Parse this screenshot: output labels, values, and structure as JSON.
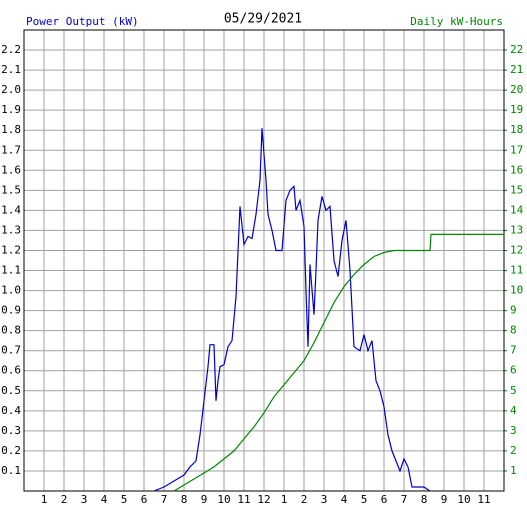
{
  "chart_data": {
    "type": "line",
    "title": "05/29/2021",
    "y_label": "Power Output (kW)",
    "y2_label": "Daily kW-Hours",
    "xlim": [
      0,
      24
    ],
    "xticks": [
      1,
      2,
      3,
      4,
      5,
      6,
      7,
      8,
      9,
      10,
      11,
      12,
      {
        "value": 13,
        "label": "1"
      },
      {
        "value": 14,
        "label": "2"
      },
      {
        "value": 15,
        "label": "3"
      },
      {
        "value": 16,
        "label": "4"
      },
      {
        "value": 17,
        "label": "5"
      },
      {
        "value": 18,
        "label": "6"
      },
      {
        "value": 19,
        "label": "7"
      },
      {
        "value": 20,
        "label": "8"
      },
      {
        "value": 21,
        "label": "9"
      },
      {
        "value": 22,
        "label": "10"
      },
      {
        "value": 23,
        "label": "11"
      }
    ],
    "ylim": [
      0,
      2.3
    ],
    "yticks": [
      0.1,
      0.2,
      0.3,
      0.4,
      0.5,
      0.6,
      0.7,
      0.8,
      0.9,
      {
        "value": 1,
        "label": "1.0"
      },
      1.1,
      1.2,
      1.3,
      1.4,
      1.5,
      1.6,
      1.7,
      1.8,
      1.9,
      {
        "value": 2,
        "label": "2.0"
      },
      2.1,
      2.2
    ],
    "y2lim": [
      0,
      23
    ],
    "y2ticks": [
      1,
      2,
      3,
      4,
      5,
      6,
      7,
      8,
      9,
      10,
      11,
      12,
      13,
      14,
      15,
      16,
      17,
      18,
      19,
      20,
      21,
      22
    ],
    "grid": true,
    "series": [
      {
        "name": "Power Output (kW)",
        "color": "#0000cc",
        "axis": "y",
        "x": [
          6.5,
          7.0,
          7.5,
          8.0,
          8.3,
          8.6,
          8.8,
          9.0,
          9.2,
          9.3,
          9.5,
          9.6,
          9.7,
          9.8,
          10.0,
          10.2,
          10.4,
          10.6,
          10.8,
          11.0,
          11.2,
          11.4,
          11.6,
          11.8,
          11.9,
          12.1,
          12.2,
          12.4,
          12.6,
          12.9,
          13.1,
          13.3,
          13.5,
          13.6,
          13.8,
          14.0,
          14.1,
          14.2,
          14.3,
          14.5,
          14.6,
          14.7,
          14.9,
          15.1,
          15.3,
          15.5,
          15.7,
          15.9,
          16.1,
          16.3,
          16.5,
          16.8,
          17.0,
          17.2,
          17.4,
          17.6,
          17.8,
          18.0,
          18.2,
          18.4,
          18.6,
          18.8,
          19.0,
          19.2,
          19.4,
          20.0,
          20.3
        ],
        "values": [
          0,
          0.02,
          0.05,
          0.08,
          0.12,
          0.15,
          0.28,
          0.45,
          0.62,
          0.73,
          0.73,
          0.45,
          0.55,
          0.62,
          0.63,
          0.72,
          0.75,
          0.97,
          1.42,
          1.23,
          1.27,
          1.26,
          1.38,
          1.55,
          1.81,
          1.55,
          1.38,
          1.3,
          1.2,
          1.2,
          1.45,
          1.5,
          1.52,
          1.4,
          1.45,
          1.32,
          1.0,
          0.72,
          1.13,
          0.88,
          1.1,
          1.35,
          1.47,
          1.4,
          1.42,
          1.15,
          1.07,
          1.25,
          1.35,
          1.1,
          0.72,
          0.7,
          0.78,
          0.7,
          0.75,
          0.55,
          0.5,
          0.42,
          0.28,
          0.2,
          0.15,
          0.1,
          0.16,
          0.12,
          0.02,
          0.02,
          0
        ]
      },
      {
        "name": "Daily kW-Hours",
        "color": "#008800",
        "axis": "y2",
        "x": [
          7.5,
          8.0,
          8.5,
          9.0,
          9.5,
          10.0,
          10.5,
          11.0,
          11.5,
          12.0,
          12.5,
          13.0,
          13.5,
          14.0,
          14.5,
          15.0,
          15.5,
          16.0,
          16.5,
          17.0,
          17.5,
          18.0,
          18.5,
          19.0,
          20.3,
          20.35,
          24
        ],
        "values": [
          0,
          0.3,
          0.6,
          0.9,
          1.2,
          1.6,
          2.0,
          2.6,
          3.2,
          3.9,
          4.7,
          5.3,
          5.9,
          6.5,
          7.4,
          8.4,
          9.4,
          10.2,
          10.8,
          11.3,
          11.7,
          11.9,
          12.0,
          12.0,
          12.0,
          12.8,
          12.8
        ]
      }
    ]
  }
}
